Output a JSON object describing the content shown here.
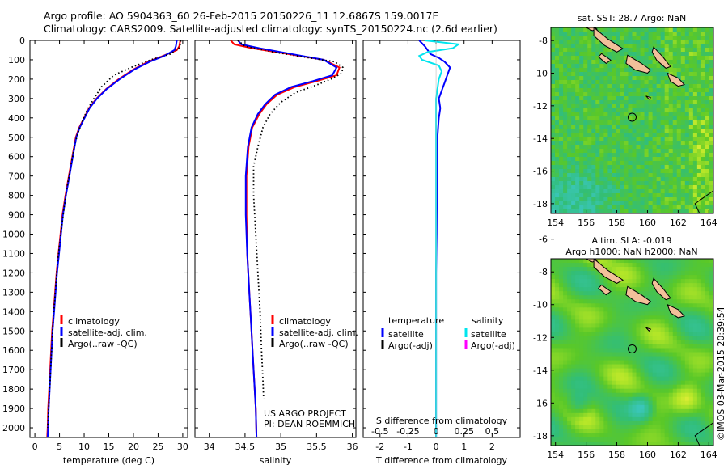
{
  "header": {
    "line1": "Argo profile: AO 5904363_60 26-Feb-2015 20150226_11 12.6867S 159.0017E",
    "line2": "Climatology: CARS2009. Satellite-adjusted climatology: synTS_20150224.nc (2.6d earlier)"
  },
  "colors": {
    "climatology": "#ff0000",
    "satellite": "#0000ff",
    "argo": "#000000",
    "s_satellite": "#00e5ee",
    "s_argo": "#ff00ff",
    "land": "#f2c09a"
  },
  "side_text": "©IMOS 03-Mar-2015 20:39:54",
  "chart_data": [
    {
      "type": "line",
      "panel": "temperature",
      "xlabel": "temperature (deg C)",
      "ylabel": "",
      "xlim": [
        -1,
        31
      ],
      "ylim": [
        2050,
        0
      ],
      "xticks": [
        0,
        5,
        10,
        15,
        20,
        25,
        30
      ],
      "yticks": [
        0,
        100,
        200,
        300,
        400,
        500,
        600,
        700,
        800,
        900,
        1000,
        1100,
        1200,
        1300,
        1400,
        1500,
        1600,
        1700,
        1800,
        1900,
        2000
      ],
      "legend": [
        "climatology",
        "satellite-adj. clim.",
        "Argo(..raw -QC)"
      ],
      "series": [
        {
          "name": "climatology",
          "style": "solid",
          "color": "#ff0000",
          "points": [
            [
              29.5,
              0
            ],
            [
              29.3,
              30
            ],
            [
              28.8,
              50
            ],
            [
              26,
              80
            ],
            [
              23,
              110
            ],
            [
              20,
              150
            ],
            [
              17,
              200
            ],
            [
              14.5,
              250
            ],
            [
              12.5,
              300
            ],
            [
              11,
              350
            ],
            [
              10,
              400
            ],
            [
              9,
              450
            ],
            [
              8.3,
              500
            ],
            [
              7.6,
              600
            ],
            [
              6.9,
              700
            ],
            [
              6.2,
              800
            ],
            [
              5.6,
              900
            ],
            [
              5.2,
              1000
            ],
            [
              4.8,
              1100
            ],
            [
              4.4,
              1200
            ],
            [
              4.1,
              1300
            ],
            [
              3.8,
              1400
            ],
            [
              3.5,
              1500
            ],
            [
              3.3,
              1600
            ],
            [
              3.1,
              1700
            ],
            [
              2.9,
              1800
            ],
            [
              2.7,
              1900
            ],
            [
              2.6,
              2000
            ],
            [
              2.5,
              2050
            ]
          ]
        },
        {
          "name": "satellite-adj. clim.",
          "style": "solid",
          "color": "#0000ff",
          "points": [
            [
              28.8,
              0
            ],
            [
              28.6,
              30
            ],
            [
              28.3,
              50
            ],
            [
              26.2,
              80
            ],
            [
              23.3,
              110
            ],
            [
              20.2,
              150
            ],
            [
              17.2,
              200
            ],
            [
              14.6,
              250
            ],
            [
              12.6,
              300
            ],
            [
              11.1,
              350
            ],
            [
              10.1,
              400
            ],
            [
              9.1,
              450
            ],
            [
              8.4,
              500
            ],
            [
              7.7,
              600
            ],
            [
              7,
              700
            ],
            [
              6.3,
              800
            ],
            [
              5.7,
              900
            ],
            [
              5.3,
              1000
            ],
            [
              4.9,
              1100
            ],
            [
              4.5,
              1200
            ],
            [
              4.2,
              1300
            ],
            [
              3.9,
              1400
            ],
            [
              3.6,
              1500
            ],
            [
              3.4,
              1600
            ],
            [
              3.2,
              1700
            ],
            [
              3,
              1800
            ],
            [
              2.8,
              1900
            ],
            [
              2.7,
              2000
            ],
            [
              2.6,
              2050
            ]
          ]
        },
        {
          "name": "Argo(..raw -QC)",
          "style": "dotted",
          "color": "#000000",
          "points": [
            [
              29.6,
              0
            ],
            [
              29.5,
              20
            ],
            [
              29.2,
              40
            ],
            [
              27.5,
              70
            ],
            [
              23.5,
              100
            ],
            [
              19.5,
              140
            ],
            [
              16,
              180
            ],
            [
              13.5,
              240
            ],
            [
              12,
              300
            ],
            [
              10.6,
              360
            ],
            [
              9.6,
              420
            ],
            [
              8.7,
              480
            ],
            [
              8,
              550
            ],
            [
              7.3,
              650
            ],
            [
              6.6,
              750
            ],
            [
              6,
              850
            ],
            [
              5.5,
              950
            ],
            [
              5,
              1050
            ],
            [
              4.6,
              1150
            ],
            [
              4.3,
              1250
            ],
            [
              4,
              1350
            ],
            [
              3.7,
              1450
            ],
            [
              3.5,
              1550
            ],
            [
              3.3,
              1650
            ],
            [
              3.1,
              1750
            ],
            [
              2.9,
              1850
            ],
            [
              2.7,
              1950
            ],
            [
              2.6,
              2000
            ]
          ]
        }
      ]
    },
    {
      "type": "line",
      "panel": "salinity",
      "xlabel": "salinity",
      "ylabel": "",
      "xlim": [
        33.8,
        36.05
      ],
      "ylim": [
        2050,
        0
      ],
      "xticks": [
        34,
        34.5,
        35,
        35.5,
        36
      ],
      "legend": [
        "climatology",
        "satellite-adj. clim.",
        "Argo(..raw -QC)"
      ],
      "annotation": [
        "US ARGO PROJECT",
        "PI: DEAN ROEMMICH"
      ],
      "series": [
        {
          "name": "climatology",
          "style": "solid",
          "color": "#ff0000",
          "points": [
            [
              34.3,
              0
            ],
            [
              34.35,
              20
            ],
            [
              34.6,
              40
            ],
            [
              35.1,
              70
            ],
            [
              35.6,
              100
            ],
            [
              35.82,
              140
            ],
            [
              35.78,
              180
            ],
            [
              35.5,
              210
            ],
            [
              35.2,
              240
            ],
            [
              34.95,
              280
            ],
            [
              34.8,
              330
            ],
            [
              34.7,
              380
            ],
            [
              34.6,
              450
            ],
            [
              34.55,
              550
            ],
            [
              34.52,
              700
            ],
            [
              34.52,
              900
            ],
            [
              34.53,
              1100
            ],
            [
              34.56,
              1300
            ],
            [
              34.59,
              1500
            ],
            [
              34.62,
              1700
            ],
            [
              34.65,
              1900
            ],
            [
              34.66,
              2050
            ]
          ]
        },
        {
          "name": "satellite-adj. clim.",
          "style": "solid",
          "color": "#0000ff",
          "points": [
            [
              34.4,
              0
            ],
            [
              34.45,
              20
            ],
            [
              34.7,
              40
            ],
            [
              35.15,
              70
            ],
            [
              35.6,
              100
            ],
            [
              35.78,
              140
            ],
            [
              35.72,
              180
            ],
            [
              35.45,
              210
            ],
            [
              35.15,
              240
            ],
            [
              34.92,
              280
            ],
            [
              34.78,
              330
            ],
            [
              34.68,
              380
            ],
            [
              34.59,
              450
            ],
            [
              34.54,
              550
            ],
            [
              34.51,
              700
            ],
            [
              34.51,
              900
            ],
            [
              34.53,
              1100
            ],
            [
              34.56,
              1300
            ],
            [
              34.59,
              1500
            ],
            [
              34.62,
              1700
            ],
            [
              34.65,
              1900
            ],
            [
              34.66,
              2050
            ]
          ]
        },
        {
          "name": "Argo(..raw -QC)",
          "style": "dotted",
          "color": "#000000",
          "points": [
            [
              34.4,
              0
            ],
            [
              34.5,
              30
            ],
            [
              34.9,
              60
            ],
            [
              35.4,
              90
            ],
            [
              35.75,
              110
            ],
            [
              35.87,
              140
            ],
            [
              35.85,
              170
            ],
            [
              35.7,
              200
            ],
            [
              35.5,
              230
            ],
            [
              35.2,
              270
            ],
            [
              35,
              320
            ],
            [
              34.85,
              380
            ],
            [
              34.75,
              450
            ],
            [
              34.68,
              550
            ],
            [
              34.62,
              650
            ],
            [
              34.62,
              800
            ],
            [
              34.65,
              1000
            ],
            [
              34.68,
              1200
            ],
            [
              34.71,
              1400
            ],
            [
              34.73,
              1600
            ],
            [
              34.75,
              1750
            ],
            [
              34.76,
              1850
            ]
          ]
        }
      ]
    },
    {
      "type": "line",
      "panel": "difference",
      "xlabel": "T difference from climatology",
      "xlabel_top": "S difference from climatology",
      "xlim": [
        -2.6,
        3
      ],
      "ylim": [
        2050,
        0
      ],
      "xticks": [
        -2,
        -1,
        0,
        1,
        2
      ],
      "xticks_s": [
        "-0.5",
        "-0.25",
        "0",
        "0.25",
        "0.5"
      ],
      "xticks_s_pos": [
        -2,
        -1,
        0,
        1,
        2
      ],
      "legend_left_title": "temperature",
      "legend_right_title": "salinity",
      "legend_left": [
        "satellite",
        "Argo(-adj)"
      ],
      "legend_right": [
        "satellite",
        "Argo(-adj)"
      ],
      "series": [
        {
          "name": "T satellite",
          "style": "solid",
          "color": "#0000ff",
          "points": [
            [
              -0.6,
              0
            ],
            [
              -0.4,
              30
            ],
            [
              -0.3,
              50
            ],
            [
              -0.2,
              70
            ],
            [
              0.1,
              90
            ],
            [
              0.3,
              110
            ],
            [
              0.5,
              140
            ],
            [
              0.4,
              180
            ],
            [
              0.3,
              220
            ],
            [
              0.2,
              260
            ],
            [
              0.1,
              300
            ],
            [
              0.15,
              350
            ],
            [
              0.1,
              400
            ],
            [
              0.05,
              500
            ],
            [
              0.05,
              600
            ],
            [
              0.03,
              800
            ],
            [
              0.02,
              1000
            ],
            [
              0.0,
              1200
            ],
            [
              0.0,
              1400
            ],
            [
              0.0,
              1600
            ],
            [
              0.0,
              1800
            ],
            [
              0.0,
              2000
            ],
            [
              0.0,
              2050
            ]
          ]
        },
        {
          "name": "S satellite",
          "style": "solid",
          "color": "#00e5ee",
          "points": [
            [
              -0.4,
              0
            ],
            [
              0.8,
              20
            ],
            [
              0.6,
              40
            ],
            [
              -0.3,
              60
            ],
            [
              -0.6,
              80
            ],
            [
              -0.5,
              100
            ],
            [
              0.1,
              130
            ],
            [
              0.2,
              160
            ],
            [
              0.1,
              200
            ],
            [
              0.05,
              250
            ],
            [
              0.0,
              300
            ],
            [
              0.0,
              400
            ],
            [
              0.0,
              600
            ],
            [
              0.0,
              800
            ],
            [
              0.0,
              1000
            ],
            [
              0.0,
              1200
            ],
            [
              0.0,
              1400
            ],
            [
              0.0,
              1600
            ],
            [
              0.0,
              1800
            ],
            [
              0.0,
              2000
            ],
            [
              0.0,
              2050
            ]
          ]
        }
      ]
    },
    {
      "type": "heatmap",
      "panel": "sst_map",
      "title": "sat. SST: 28.7 Argo: NaN",
      "xlim": [
        153.7,
        164.3
      ],
      "ylim": [
        -18.6,
        -7.2
      ],
      "xticks": [
        154,
        156,
        158,
        160,
        162,
        164
      ],
      "yticks": [
        -8,
        -10,
        -12,
        -14,
        -16,
        -18
      ],
      "float_position": [
        159.0,
        -12.7
      ]
    },
    {
      "type": "heatmap",
      "panel": "sla_map",
      "title_line1": "Altim. SLA: -0.019",
      "title_line2": "Argo h1000: NaN h2000: NaN",
      "xlim": [
        153.7,
        164.3
      ],
      "ylim": [
        -18.6,
        -7.2
      ],
      "xticks": [
        154,
        156,
        158,
        160,
        162,
        164
      ],
      "yticks": [
        -6,
        -8,
        -10,
        -12,
        -14,
        -16,
        -18
      ],
      "float_position": [
        159.0,
        -12.7
      ]
    }
  ]
}
